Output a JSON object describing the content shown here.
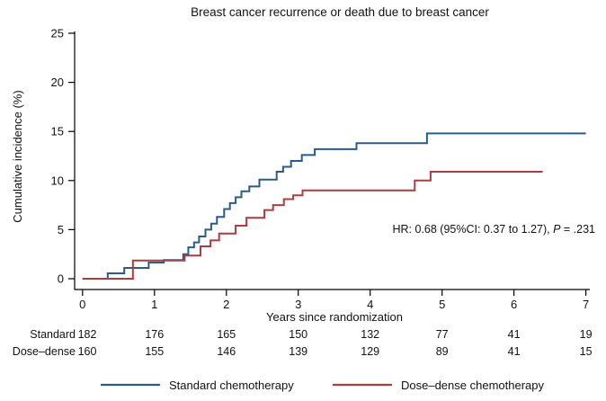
{
  "title": "Breast cancer recurrence or death due to breast cancer",
  "annotation": {
    "hr_prefix": "HR: 0.68 (95%CI: 0.37 to 1.27), ",
    "p_label": "P",
    "p_value": " = .231"
  },
  "axes": {
    "y": {
      "label": "Cumulative incidence (%)",
      "ticks": [
        "0",
        "5",
        "10",
        "15",
        "20",
        "25"
      ]
    },
    "x": {
      "label": "Years since randomization",
      "ticks": [
        "0",
        "1",
        "2",
        "3",
        "4",
        "5",
        "6",
        "7"
      ]
    }
  },
  "risk_table": {
    "rows": [
      {
        "label": "Standard",
        "counts": [
          "182",
          "176",
          "165",
          "150",
          "132",
          "77",
          "41",
          "19"
        ]
      },
      {
        "label": "Dose–dense",
        "counts": [
          "160",
          "155",
          "146",
          "139",
          "129",
          "89",
          "41",
          "15"
        ]
      }
    ]
  },
  "legend": {
    "items": [
      {
        "label": "Standard chemotherapy",
        "color": "#2b5a8c"
      },
      {
        "label": "Dose–dense chemotherapy",
        "color": "#ab3c3f"
      }
    ]
  },
  "chart_data": {
    "type": "line",
    "subtype": "step-after-cumulative-incidence",
    "title": "Breast cancer recurrence or death due to breast cancer",
    "xlabel": "Years since randomization",
    "ylabel": "Cumulative incidence (%)",
    "xlim": [
      0,
      7
    ],
    "ylim": [
      0,
      25
    ],
    "grid": false,
    "legend_position": "bottom",
    "annotation": "HR: 0.68 (95%CI: 0.37 to 1.27), P = .231",
    "series": [
      {
        "name": "Standard chemotherapy",
        "color": "#2b5a8c",
        "end_x": 7.0,
        "points": [
          [
            0,
            0
          ],
          [
            0.35,
            0.55
          ],
          [
            0.58,
            1.1
          ],
          [
            0.92,
            1.65
          ],
          [
            1.13,
            1.9
          ],
          [
            1.4,
            2.5
          ],
          [
            1.47,
            3.2
          ],
          [
            1.55,
            3.7
          ],
          [
            1.62,
            4.3
          ],
          [
            1.71,
            5.0
          ],
          [
            1.79,
            5.6
          ],
          [
            1.87,
            6.3
          ],
          [
            1.97,
            7.1
          ],
          [
            2.05,
            7.7
          ],
          [
            2.13,
            8.3
          ],
          [
            2.21,
            8.9
          ],
          [
            2.32,
            9.4
          ],
          [
            2.46,
            10.1
          ],
          [
            2.7,
            10.9
          ],
          [
            2.79,
            11.4
          ],
          [
            2.9,
            12.0
          ],
          [
            3.05,
            12.6
          ],
          [
            3.23,
            13.2
          ],
          [
            3.81,
            13.8
          ],
          [
            4.79,
            14.8
          ]
        ]
      },
      {
        "name": "Dose–dense chemotherapy",
        "color": "#ab3c3f",
        "end_x": 6.4,
        "points": [
          [
            0,
            0
          ],
          [
            0.7,
            1.85
          ],
          [
            1.42,
            2.35
          ],
          [
            1.64,
            3.3
          ],
          [
            1.78,
            3.9
          ],
          [
            1.9,
            4.6
          ],
          [
            2.13,
            5.4
          ],
          [
            2.28,
            6.2
          ],
          [
            2.53,
            7.0
          ],
          [
            2.65,
            7.5
          ],
          [
            2.8,
            8.1
          ],
          [
            2.93,
            8.5
          ],
          [
            3.06,
            9.0
          ],
          [
            4.62,
            10.0
          ],
          [
            4.84,
            10.9
          ]
        ]
      }
    ],
    "risk_table": {
      "rows": [
        {
          "label": "Standard",
          "counts": [
            182,
            176,
            165,
            150,
            132,
            77,
            41,
            19
          ]
        },
        {
          "label": "Dose–dense",
          "counts": [
            160,
            155,
            146,
            139,
            129,
            89,
            41,
            15
          ]
        }
      ]
    }
  }
}
